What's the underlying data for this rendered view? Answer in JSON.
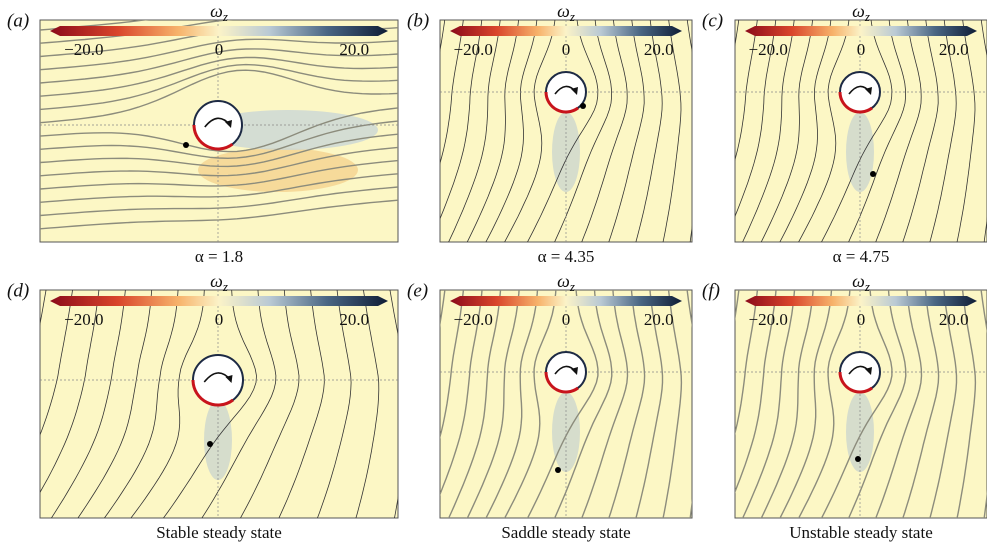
{
  "panels": [
    {
      "label": "(a)",
      "colorbar": {
        "symbol": "ω",
        "subscript": "z",
        "ticks": [
          "−20.0",
          "0",
          "20.0"
        ]
      },
      "caption": "α = 1.8"
    },
    {
      "label": "(b)",
      "colorbar": {
        "symbol": "ω",
        "subscript": "z",
        "ticks": [
          "−20.0",
          "0",
          "20.0"
        ]
      },
      "caption": "α = 4.35"
    },
    {
      "label": "(c)",
      "colorbar": {
        "symbol": "ω",
        "subscript": "z",
        "ticks": [
          "−20.0",
          "0",
          "20.0"
        ]
      },
      "caption": "α = 4.75"
    },
    {
      "label": "(d)",
      "colorbar": {
        "symbol": "ω",
        "subscript": "z",
        "ticks": [
          "−20.0",
          "0",
          "20.0"
        ]
      },
      "caption": "Stable steady state"
    },
    {
      "label": "(e)",
      "colorbar": {
        "symbol": "ω",
        "subscript": "z",
        "ticks": [
          "−20.0",
          "0",
          "20.0"
        ]
      },
      "caption": "Saddle steady state"
    },
    {
      "label": "(f)",
      "colorbar": {
        "symbol": "ω",
        "subscript": "z",
        "ticks": [
          "−20.0",
          "0",
          "20.0"
        ]
      },
      "caption": "Unstable steady state"
    }
  ]
}
